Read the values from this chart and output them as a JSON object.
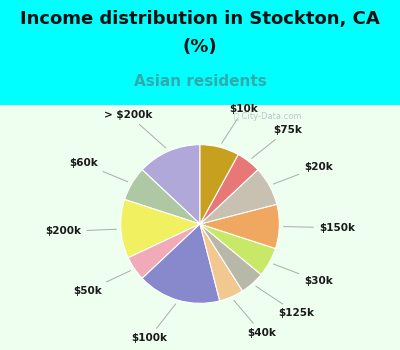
{
  "title_line1": "Income distribution in Stockton, CA",
  "title_line2": "(%)",
  "subtitle": "Asian residents",
  "bg_top": "#00ffff",
  "bg_chart": "#d8eee0",
  "labels": [
    "> $200k",
    "$60k",
    "$200k",
    "$50k",
    "$100k",
    "$40k",
    "$125k",
    "$30k",
    "$150k",
    "$20k",
    "$75k",
    "$10k"
  ],
  "values": [
    13,
    7,
    12,
    5,
    17,
    5,
    5,
    6,
    9,
    8,
    5,
    8
  ],
  "colors": [
    "#b0a8d8",
    "#aec8a4",
    "#f0f060",
    "#f0aab8",
    "#8888cc",
    "#f0c890",
    "#b8b8a8",
    "#c8e868",
    "#f0a860",
    "#c8c0b0",
    "#e87878",
    "#c8a020"
  ],
  "startangle": 90,
  "title_fontsize": 13,
  "subtitle_fontsize": 11,
  "label_fontsize": 7.5
}
